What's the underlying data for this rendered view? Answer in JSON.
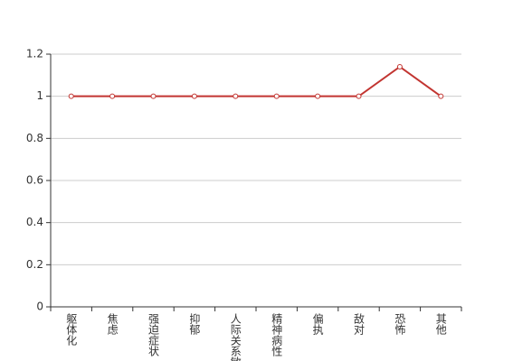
{
  "chart_data": {
    "type": "line",
    "categories": [
      "躯体化",
      "焦虑",
      "强迫症状",
      "抑郁",
      "人际关系敏感",
      "精神病性",
      "偏执",
      "敌对",
      "恐怖",
      "其他"
    ],
    "series": [
      {
        "name": "",
        "color": "#c23531",
        "values": [
          1,
          1,
          1,
          1,
          1,
          1,
          1,
          1,
          1.14,
          1
        ]
      }
    ],
    "ylim": [
      0,
      1.2
    ],
    "yticks": [
      0,
      0.2,
      0.4,
      0.6,
      0.8,
      1,
      1.2
    ],
    "grid": true
  }
}
